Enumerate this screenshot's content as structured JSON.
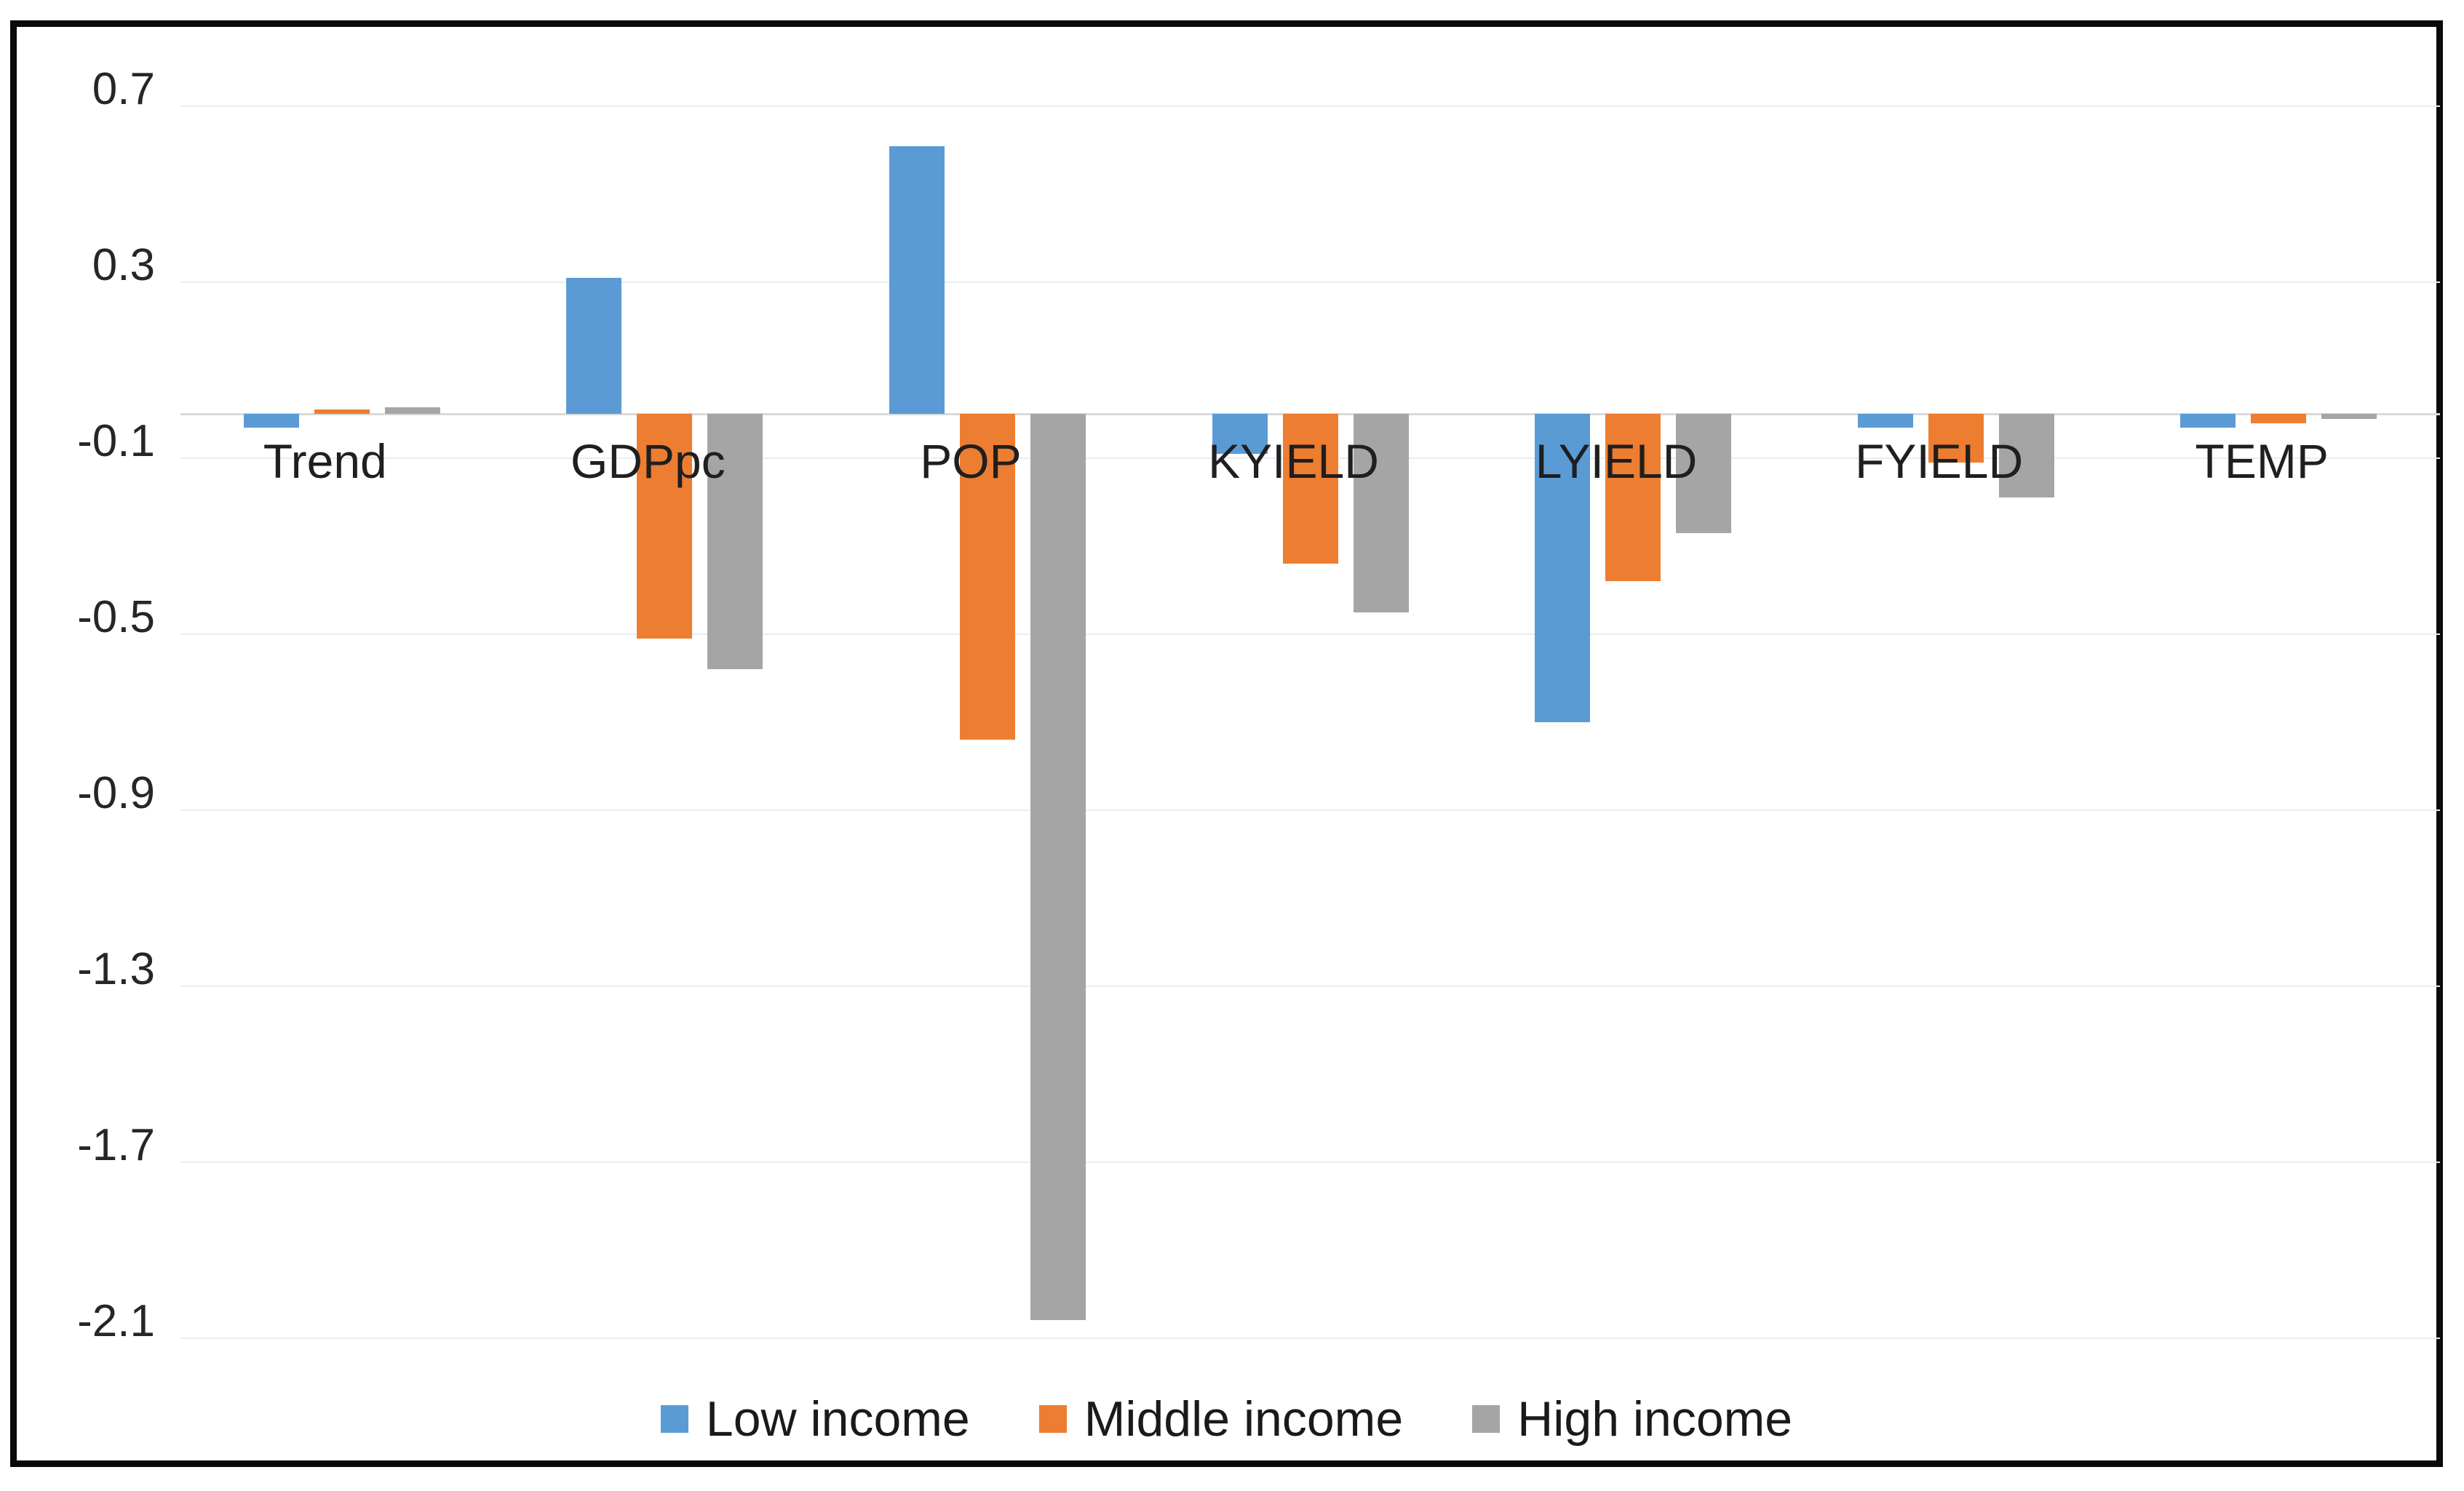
{
  "chart_data": {
    "type": "bar",
    "title": "",
    "xlabel": "",
    "ylabel": "",
    "categories": [
      "Trend",
      "GDPpc",
      "POP",
      "KYIELD",
      "LYIELD",
      "FYIELD",
      "TEMP"
    ],
    "series": [
      {
        "name": "Low income",
        "color": "#5B9BD5",
        "values": [
          -0.03,
          0.31,
          0.61,
          -0.09,
          -0.7,
          -0.03,
          -0.03
        ]
      },
      {
        "name": "Middle income",
        "color": "#ED7D31",
        "values": [
          0.01,
          -0.51,
          -0.74,
          -0.34,
          -0.38,
          -0.11,
          -0.02
        ]
      },
      {
        "name": "High income",
        "color": "#A5A5A5",
        "values": [
          0.015,
          -0.58,
          -2.06,
          -0.45,
          -0.27,
          -0.19,
          -0.01
        ]
      }
    ],
    "yticks": [
      0.7,
      0.3,
      -0.1,
      -0.5,
      -0.9,
      -1.3,
      -1.7,
      -2.1
    ],
    "ytick_labels": [
      "0.7",
      "0.3",
      "-0.1",
      "-0.5",
      "-0.9",
      "-1.3",
      "-1.7",
      "-2.1"
    ],
    "ylim": [
      0.72,
      -2.17
    ],
    "grid": true,
    "legend_position": "bottom"
  },
  "styles": {
    "gridline_color": "#e7edf3",
    "axis_line_color": "#d9d9d9",
    "frame_border_color": "#0a0a0a",
    "text_color": "#262626",
    "background": "#ffffff"
  }
}
